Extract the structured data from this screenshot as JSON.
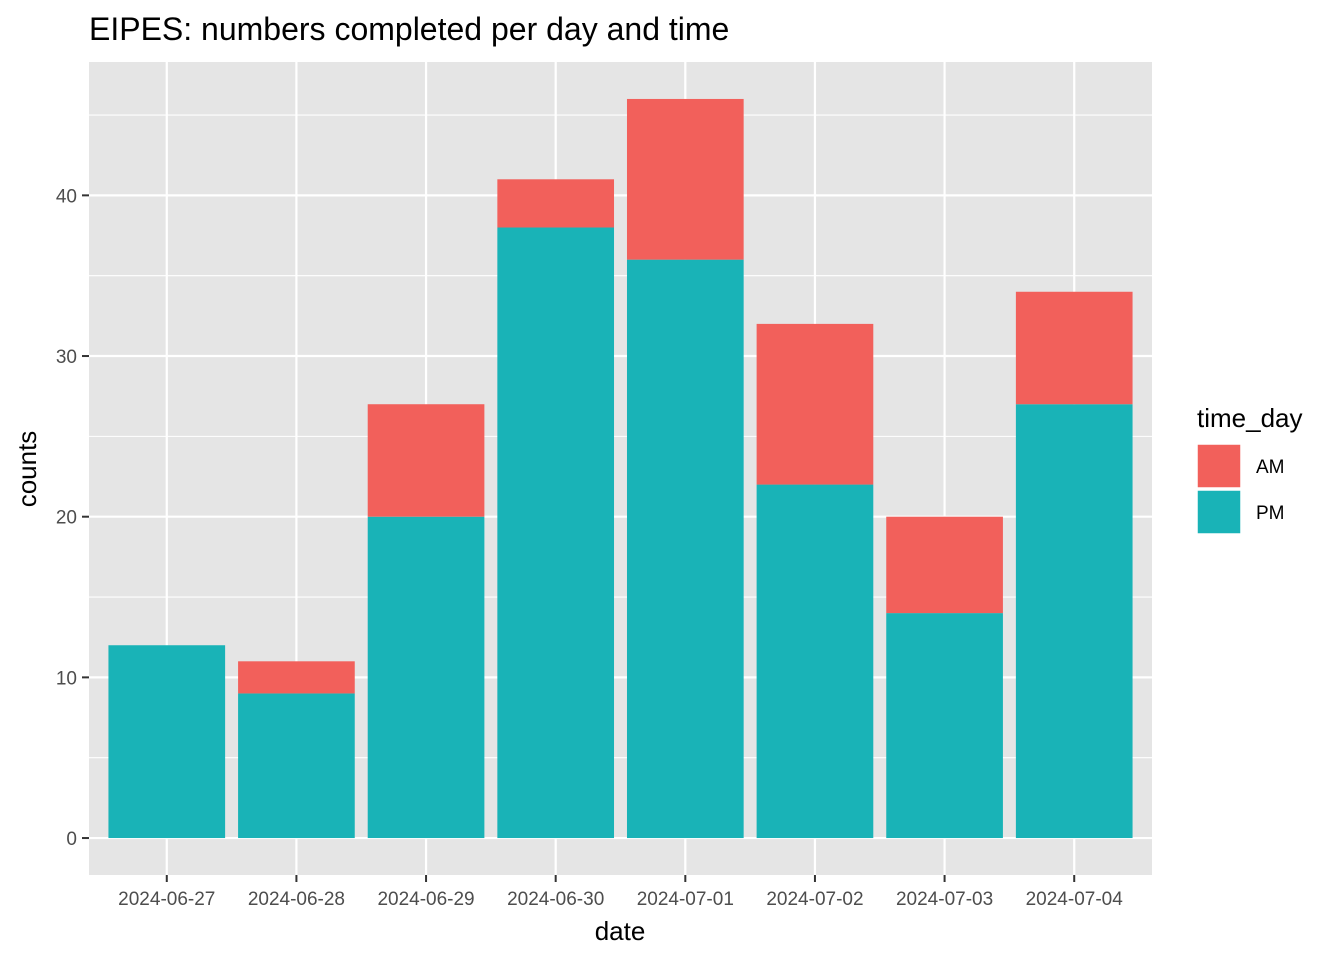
{
  "chart_data": {
    "type": "bar",
    "stacked": true,
    "title": "EIPES: numbers completed per day and time",
    "xlabel": "date",
    "ylabel": "counts",
    "categories": [
      "2024-06-27",
      "2024-06-28",
      "2024-06-29",
      "2024-06-30",
      "2024-07-01",
      "2024-07-02",
      "2024-07-03",
      "2024-07-04"
    ],
    "series": [
      {
        "name": "PM",
        "values": [
          12,
          9,
          20,
          38,
          36,
          22,
          14,
          27
        ],
        "color": "#19B3B7"
      },
      {
        "name": "AM",
        "values": [
          0,
          2,
          7,
          3,
          10,
          10,
          6,
          7
        ],
        "color": "#F2605B"
      }
    ],
    "ylim": [
      -2.3,
      48.3
    ],
    "yticks": [
      0,
      10,
      20,
      30,
      40
    ],
    "grid": true,
    "legend": {
      "title": "time_day",
      "position": "right",
      "entries": [
        "AM",
        "PM"
      ]
    },
    "colors": {
      "panel": "#E5E5E5",
      "gridline": "#FFFFFF",
      "tick_text": "#4D4D4D"
    }
  }
}
